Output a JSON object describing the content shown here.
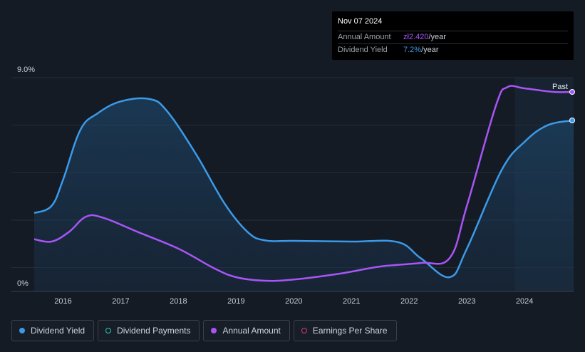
{
  "tooltip": {
    "date": "Nov 07 2024",
    "rows": [
      {
        "label": "Annual Amount",
        "value": "zł2.420",
        "unit": "/year",
        "color": "#a855f7"
      },
      {
        "label": "Dividend Yield",
        "value": "7.2%",
        "unit": "/year",
        "color": "#3b9ae8"
      }
    ]
  },
  "past_label": "Past",
  "legend": [
    {
      "label": "Dividend Yield",
      "color": "#3b9ae8",
      "filled": true
    },
    {
      "label": "Dividend Payments",
      "color": "#2ec4b6",
      "filled": false
    },
    {
      "label": "Annual Amount",
      "color": "#a855f7",
      "filled": true
    },
    {
      "label": "Earnings Per Share",
      "color": "#d6387f",
      "filled": false
    }
  ],
  "chart_data": {
    "type": "line",
    "x_ticks": [
      "2016",
      "2017",
      "2018",
      "2019",
      "2020",
      "2021",
      "2022",
      "2023",
      "2024"
    ],
    "y_ticks": [
      "0%",
      "9.0%"
    ],
    "ylim": [
      0,
      9.0
    ],
    "xlim": [
      2015.5,
      2024.85
    ],
    "series": [
      {
        "name": "Dividend Yield",
        "color": "#3b9ae8",
        "fill": true,
        "points": [
          [
            2015.5,
            3.3
          ],
          [
            2015.8,
            3.6
          ],
          [
            2016.0,
            4.7
          ],
          [
            2016.3,
            6.8
          ],
          [
            2016.6,
            7.5
          ],
          [
            2017.0,
            8.0
          ],
          [
            2017.5,
            8.1
          ],
          [
            2017.8,
            7.6
          ],
          [
            2018.3,
            5.8
          ],
          [
            2018.8,
            3.7
          ],
          [
            2019.2,
            2.5
          ],
          [
            2019.5,
            2.15
          ],
          [
            2020.0,
            2.13
          ],
          [
            2021.0,
            2.1
          ],
          [
            2021.8,
            2.08
          ],
          [
            2022.2,
            1.4
          ],
          [
            2022.7,
            0.6
          ],
          [
            2023.0,
            1.8
          ],
          [
            2023.6,
            5.1
          ],
          [
            2024.0,
            6.3
          ],
          [
            2024.4,
            7.0
          ],
          [
            2024.85,
            7.2
          ]
        ]
      },
      {
        "name": "Annual Amount",
        "color": "#a855f7",
        "fill": false,
        "points": [
          [
            2015.5,
            2.2
          ],
          [
            2015.8,
            2.1
          ],
          [
            2016.1,
            2.5
          ],
          [
            2016.4,
            3.15
          ],
          [
            2016.7,
            3.1
          ],
          [
            2017.3,
            2.5
          ],
          [
            2018.0,
            1.8
          ],
          [
            2018.6,
            1.0
          ],
          [
            2019.0,
            0.6
          ],
          [
            2019.5,
            0.45
          ],
          [
            2020.0,
            0.5
          ],
          [
            2020.8,
            0.75
          ],
          [
            2021.5,
            1.05
          ],
          [
            2022.2,
            1.2
          ],
          [
            2022.7,
            1.4
          ],
          [
            2023.0,
            3.6
          ],
          [
            2023.5,
            7.8
          ],
          [
            2023.7,
            8.6
          ],
          [
            2024.0,
            8.55
          ],
          [
            2024.5,
            8.4
          ],
          [
            2024.85,
            8.4
          ]
        ]
      }
    ],
    "past_start": 2023.83
  }
}
